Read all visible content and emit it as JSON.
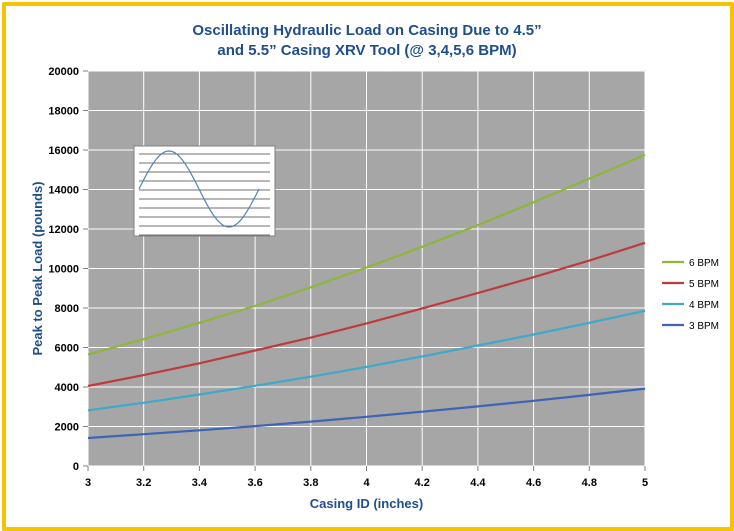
{
  "chart_data": {
    "type": "line",
    "title_line1": "Oscillating Hydraulic Load on Casing Due to 4.5”",
    "title_line2": "and 5.5” Casing XRV Tool (@ 3,4,5,6 BPM)",
    "xlabel": "Casing ID (inches)",
    "ylabel": "Peak to Peak Load (pounds)",
    "xlim": [
      3,
      5
    ],
    "ylim": [
      0,
      20000
    ],
    "x_ticks": [
      "3",
      "3.2",
      "3.4",
      "3.6",
      "3.8",
      "4",
      "4.2",
      "4.4",
      "4.6",
      "4.8",
      "5"
    ],
    "y_ticks": [
      "0",
      "2000",
      "4000",
      "6000",
      "8000",
      "10000",
      "12000",
      "14000",
      "16000",
      "18000",
      "20000"
    ],
    "x": [
      3.0,
      3.2,
      3.4,
      3.6,
      3.8,
      4.0,
      4.2,
      4.4,
      4.6,
      4.8,
      5.0
    ],
    "series": [
      {
        "name": "6 BPM",
        "color": "#8db63a",
        "values": [
          5650,
          6420,
          7250,
          8100,
          9050,
          10050,
          11100,
          12200,
          13350,
          14550,
          15750
        ]
      },
      {
        "name": "5 BPM",
        "color": "#be3b3b",
        "values": [
          4050,
          4600,
          5200,
          5850,
          6500,
          7220,
          7980,
          8760,
          9560,
          10400,
          11300
        ]
      },
      {
        "name": "4 BPM",
        "color": "#3fa9c9",
        "values": [
          2820,
          3200,
          3620,
          4060,
          4520,
          5020,
          5550,
          6100,
          6660,
          7250,
          7860
        ]
      },
      {
        "name": "3 BPM",
        "color": "#3d64b5",
        "values": [
          1420,
          1610,
          1810,
          2020,
          2250,
          2490,
          2750,
          3020,
          3300,
          3600,
          3920
        ]
      }
    ],
    "grid": true,
    "legend_position": "right",
    "plot_background": "#a6a6a6",
    "frame_color": "#f4c400"
  }
}
